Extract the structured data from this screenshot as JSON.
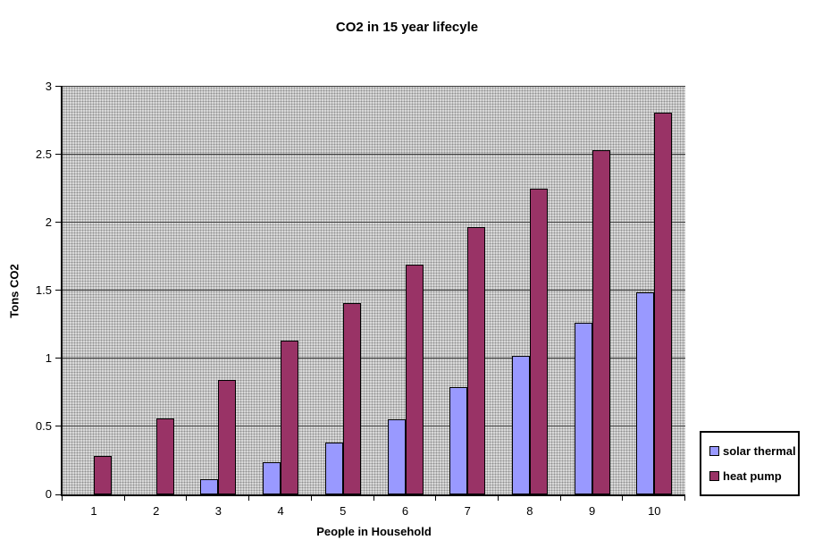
{
  "chart_data": {
    "type": "bar",
    "title": "CO2 in 15 year lifecyle",
    "xlabel": "People in Household",
    "ylabel": "Tons CO2",
    "categories": [
      "1",
      "2",
      "3",
      "4",
      "5",
      "6",
      "7",
      "8",
      "9",
      "10"
    ],
    "series": [
      {
        "name": "solar thermal",
        "color": "#9999ff",
        "values": [
          0,
          0,
          0.11,
          0.24,
          0.38,
          0.55,
          0.79,
          1.02,
          1.26,
          1.49
        ]
      },
      {
        "name": "heat pump",
        "color": "#993366",
        "values": [
          0.28,
          0.56,
          0.84,
          1.13,
          1.41,
          1.69,
          1.97,
          2.25,
          2.53,
          2.81
        ]
      }
    ],
    "ylim": [
      0,
      3
    ],
    "ytick_step": 0.5,
    "yticks": [
      "0",
      "0.5",
      "1",
      "1.5",
      "2",
      "2.5",
      "3"
    ],
    "grid": true,
    "legend_position": "right",
    "plot_background": "gray-dot-pattern",
    "bar_border_color": "#000000"
  }
}
